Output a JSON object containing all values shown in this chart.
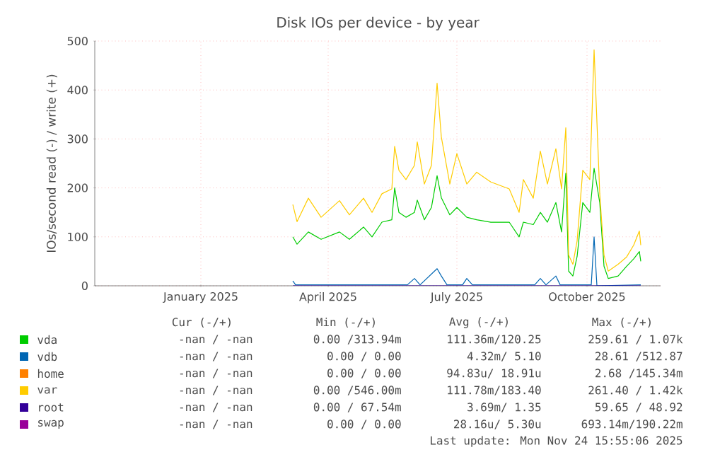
{
  "chart_data": {
    "type": "line",
    "title": "Disk IOs per device - by year",
    "ylabel": "IOs/second read (-) / write (+)",
    "xlim": [
      "2024-11-01",
      "2025-12-06"
    ],
    "ylim": [
      0,
      500
    ],
    "xticks": [
      {
        "value": "2025-01-15",
        "label": "January 2025"
      },
      {
        "value": "2025-04-15",
        "label": "April 2025"
      },
      {
        "value": "2025-07-15",
        "label": "July 2025"
      },
      {
        "value": "2025-10-15",
        "label": "October 2025"
      }
    ],
    "yticks": [
      0,
      100,
      200,
      300,
      400,
      500
    ],
    "grid": true,
    "legend": "bottom",
    "series": [
      {
        "name": "vda",
        "color": "#00cc00",
        "x": [
          "2025-03-21",
          "2025-03-24",
          "2025-04-01",
          "2025-04-10",
          "2025-04-23",
          "2025-04-30",
          "2025-05-10",
          "2025-05-16",
          "2025-05-23",
          "2025-05-30",
          "2025-06-01",
          "2025-06-04",
          "2025-06-09",
          "2025-06-15",
          "2025-06-17",
          "2025-06-22",
          "2025-06-27",
          "2025-07-01",
          "2025-07-04",
          "2025-07-10",
          "2025-07-15",
          "2025-07-22",
          "2025-07-29",
          "2025-08-08",
          "2025-08-21",
          "2025-08-28",
          "2025-08-31",
          "2025-09-07",
          "2025-09-12",
          "2025-09-17",
          "2025-09-23",
          "2025-09-27",
          "2025-09-30",
          "2025-10-02",
          "2025-10-05",
          "2025-10-08",
          "2025-10-12",
          "2025-10-17",
          "2025-10-20",
          "2025-10-24",
          "2025-10-27",
          "2025-10-30",
          "2025-11-06",
          "2025-11-12",
          "2025-11-17",
          "2025-11-21",
          "2025-11-22"
        ],
        "values": [
          100,
          85,
          110,
          95,
          110,
          95,
          120,
          100,
          130,
          135,
          200,
          150,
          140,
          150,
          175,
          135,
          160,
          225,
          180,
          145,
          160,
          140,
          135,
          130,
          130,
          100,
          130,
          125,
          150,
          130,
          170,
          110,
          230,
          30,
          20,
          60,
          170,
          150,
          240,
          170,
          40,
          15,
          20,
          40,
          55,
          70,
          50
        ]
      },
      {
        "name": "vdb",
        "color": "#0066b3",
        "x": [
          "2025-03-21",
          "2025-03-23",
          "2025-06-10",
          "2025-06-15",
          "2025-06-19",
          "2025-07-01",
          "2025-07-04",
          "2025-07-08",
          "2025-07-19",
          "2025-07-22",
          "2025-07-26",
          "2025-09-08",
          "2025-09-12",
          "2025-09-16",
          "2025-09-23",
          "2025-09-26",
          "2025-10-18",
          "2025-10-20",
          "2025-10-22",
          "2025-11-22"
        ],
        "values": [
          10,
          2,
          2,
          15,
          2,
          35,
          20,
          2,
          2,
          15,
          2,
          2,
          15,
          2,
          20,
          2,
          2,
          100,
          0,
          2
        ]
      },
      {
        "name": "home",
        "color": "#ff8000"
      },
      {
        "name": "var",
        "color": "#ffcc00",
        "x": [
          "2025-03-21",
          "2025-03-24",
          "2025-04-01",
          "2025-04-10",
          "2025-04-23",
          "2025-04-30",
          "2025-05-10",
          "2025-05-16",
          "2025-05-23",
          "2025-05-30",
          "2025-06-01",
          "2025-06-04",
          "2025-06-09",
          "2025-06-15",
          "2025-06-17",
          "2025-06-22",
          "2025-06-27",
          "2025-07-01",
          "2025-07-04",
          "2025-07-10",
          "2025-07-15",
          "2025-07-22",
          "2025-07-29",
          "2025-08-08",
          "2025-08-21",
          "2025-08-28",
          "2025-08-31",
          "2025-09-07",
          "2025-09-12",
          "2025-09-17",
          "2025-09-23",
          "2025-09-27",
          "2025-09-30",
          "2025-10-02",
          "2025-10-05",
          "2025-10-08",
          "2025-10-12",
          "2025-10-17",
          "2025-10-20",
          "2025-10-24",
          "2025-10-27",
          "2025-10-30",
          "2025-11-06",
          "2025-11-12",
          "2025-11-17",
          "2025-11-21",
          "2025-11-22"
        ],
        "values": [
          166,
          131,
          179,
          140,
          174,
          145,
          179,
          150,
          188,
          198,
          285,
          236,
          217,
          246,
          294,
          208,
          246,
          414,
          304,
          208,
          270,
          208,
          232,
          212,
          198,
          150,
          217,
          179,
          275,
          208,
          280,
          198,
          323,
          63,
          44,
          92,
          236,
          217,
          482,
          188,
          63,
          30,
          44,
          59,
          83,
          112,
          83
        ]
      },
      {
        "name": "root",
        "color": "#330099",
        "x": [
          "2025-03-21",
          "2025-11-22"
        ],
        "values": [
          0,
          0
        ]
      },
      {
        "name": "swap",
        "color": "#990099"
      }
    ],
    "annotations": [
      "Cur (-/+)",
      "Min (-/+)",
      "Avg (-/+)",
      "Max (-/+)",
      "-nan / -nan",
      "0.00 /313.94m",
      "111.36m/120.25",
      "259.61 / 1.07k",
      "-nan / -nan",
      "0.00 / 0.00",
      "4.32m/ 5.10",
      "28.61 /512.87",
      "-nan / -nan",
      "0.00 / 0.00",
      "94.83u/ 18.91u",
      "2.68 /145.34m",
      "-nan / -nan",
      "0.00 /546.00m",
      "111.78m/183.40",
      "261.40 / 1.42k",
      "-nan / -nan",
      "0.00 / 67.54m",
      "3.69m/ 1.35",
      "59.65 / 48.92",
      "-nan / -nan",
      "0.00 / 0.00",
      "28.16u/ 5.30u",
      "693.14m/190.22m",
      "Last update: Mon Nov 24 15:55:06 2025"
    ]
  }
}
